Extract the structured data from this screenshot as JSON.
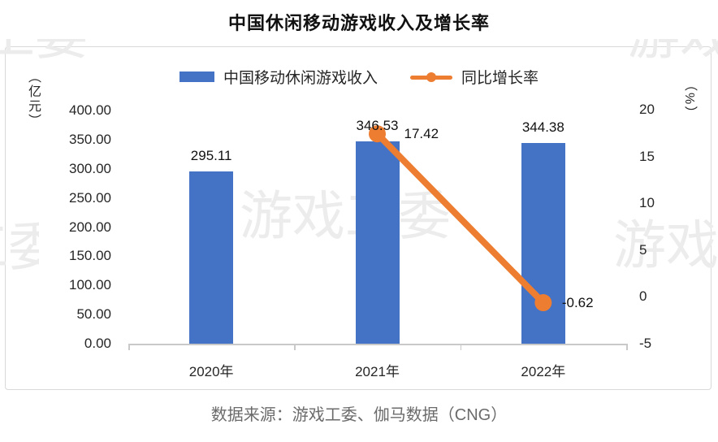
{
  "title": "中国休闲移动游戏收入及增长率",
  "legend": [
    {
      "label": "中国移动休闲游戏收入",
      "type": "bar"
    },
    {
      "label": "同比增长率",
      "type": "line"
    }
  ],
  "chart_data": {
    "type": "bar+line",
    "categories": [
      "2020年",
      "2021年",
      "2022年"
    ],
    "series": [
      {
        "name": "中国移动休闲游戏收入",
        "type": "bar",
        "axis": "left",
        "unit": "亿元",
        "values": [
          295.11,
          346.53,
          344.38
        ],
        "labels": [
          "295.11",
          "346.53",
          "344.38"
        ]
      },
      {
        "name": "同比增长率",
        "type": "line",
        "axis": "right",
        "unit": "%",
        "values": [
          null,
          17.42,
          -0.62
        ],
        "labels": [
          null,
          "17.42",
          "-0.62"
        ]
      }
    ],
    "left_axis": {
      "title": "（亿元）",
      "ticks": [
        "400.00",
        "350.00",
        "300.00",
        "250.00",
        "200.00",
        "150.00",
        "100.00",
        "50.00",
        "0.00"
      ],
      "min": 0,
      "max": 400
    },
    "right_axis": {
      "title": "（%）",
      "ticks": [
        "20",
        "15",
        "10",
        "5",
        "0",
        "-5"
      ],
      "min": -5,
      "max": 20
    },
    "x_axis": {
      "labels": [
        "2020年",
        "2021年",
        "2022年"
      ]
    },
    "legend_position": "top",
    "grid": false
  },
  "watermark": {
    "text": "游戏工委"
  },
  "source": "数据来源：游戏工委、伽马数据（CNG）",
  "colors": {
    "bar": "#4472C4",
    "line": "#ED7D31",
    "border": "#D9D9D9",
    "axis": "#C9C9C9",
    "watermark": "#ECECEC",
    "source_text": "#6B6B6B"
  }
}
